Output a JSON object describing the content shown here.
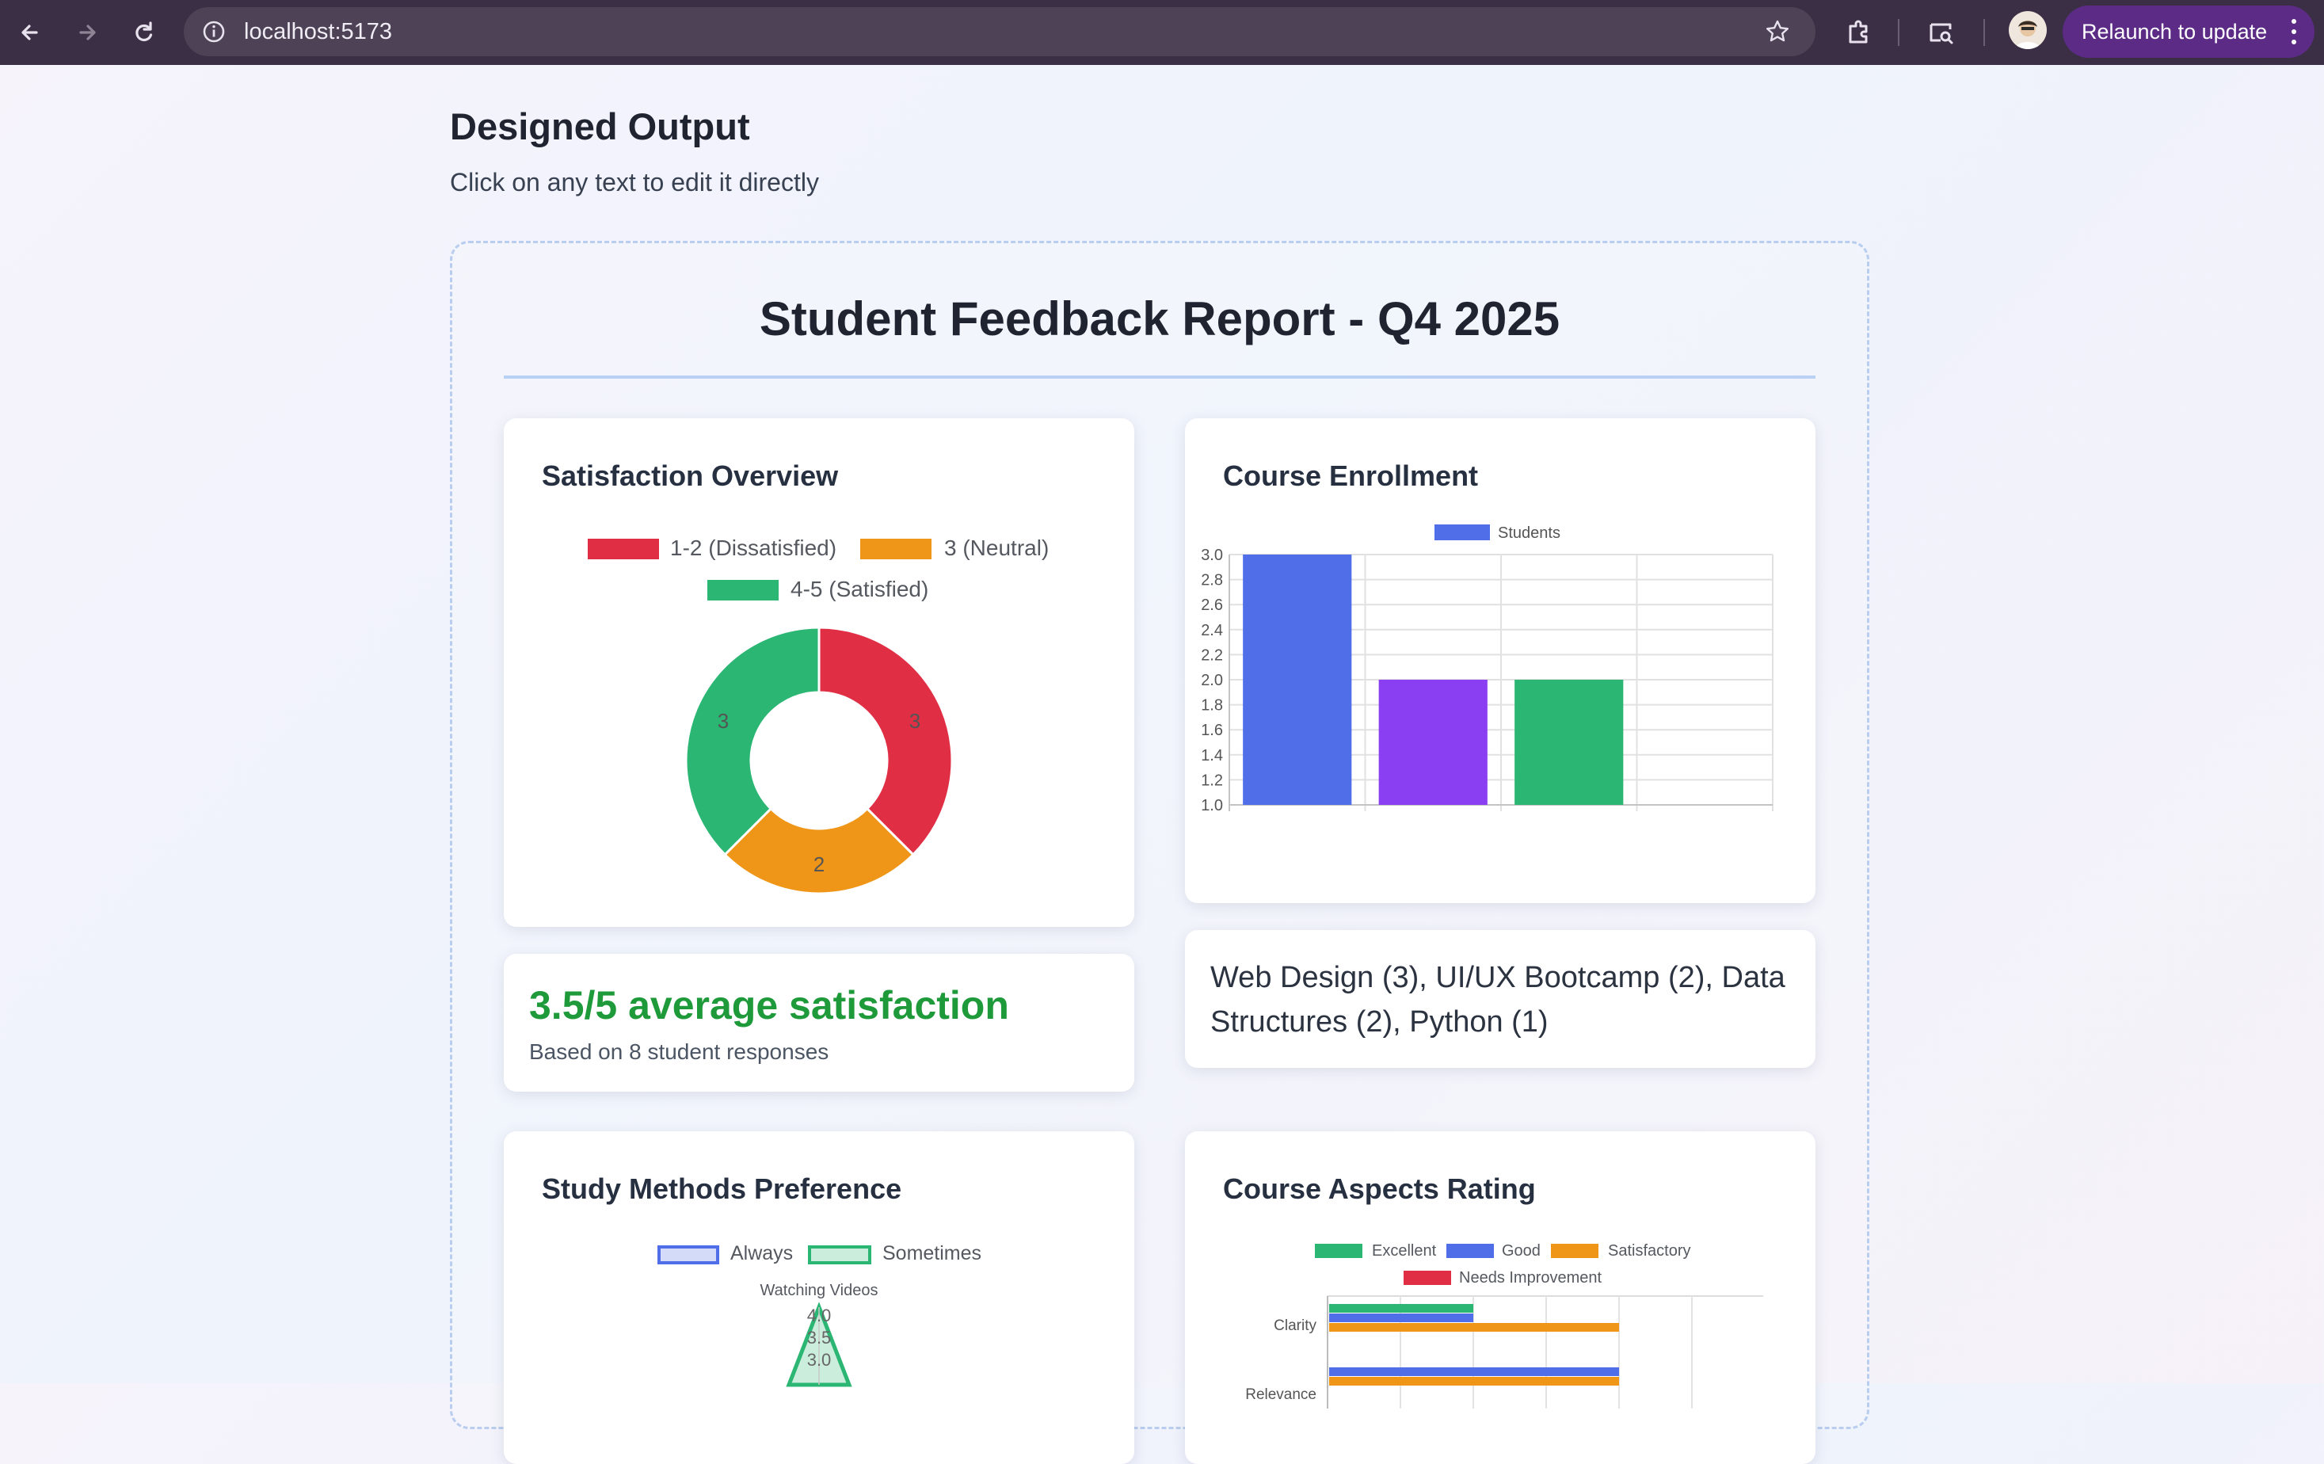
{
  "browser": {
    "url": "localhost:5173",
    "relaunch_label": "Relaunch to update"
  },
  "page": {
    "heading": "Designed Output",
    "subheading": "Click on any text to edit it directly"
  },
  "report": {
    "title": "Student Feedback Report - Q4 2025",
    "satisfaction": {
      "title": "Satisfaction Overview",
      "legend": [
        {
          "label": "1-2 (Dissatisfied)",
          "color": "#e02f44"
        },
        {
          "label": "3 (Neutral)",
          "color": "#ef9517"
        },
        {
          "label": "4-5 (Satisfied)",
          "color": "#2bb673"
        }
      ]
    },
    "average": {
      "headline": "3.5/5 average satisfaction",
      "detail": "Based on 8 student responses"
    },
    "enrollment": {
      "title": "Course Enrollment",
      "legend_label": "Students",
      "summary": "Web Design (3), UI/UX Bootcamp (2), Data Structures (2), Python (1)"
    },
    "study_methods": {
      "title": "Study Methods Preference",
      "legend": [
        {
          "label": "Always",
          "color": "#4f6ee8"
        },
        {
          "label": "Sometimes",
          "color": "#2bb673"
        }
      ],
      "axis_top_label": "Watching Videos",
      "tick_labels": [
        "4.0",
        "3.5",
        "3.0"
      ]
    },
    "aspects": {
      "title": "Course Aspects Rating",
      "legend": [
        {
          "label": "Excellent",
          "color": "#2bb673"
        },
        {
          "label": "Good",
          "color": "#4f6ee8"
        },
        {
          "label": "Satisfactory",
          "color": "#ef9517"
        },
        {
          "label": "Needs Improvement",
          "color": "#e02f44"
        }
      ],
      "categories": [
        "Clarity",
        "Relevance"
      ]
    }
  },
  "chart_data": [
    {
      "type": "pie",
      "title": "Satisfaction Overview",
      "labels": [
        "1-2 (Dissatisfied)",
        "3 (Neutral)",
        "4-5 (Satisfied)"
      ],
      "values": [
        3,
        2,
        3
      ],
      "colors": [
        "#e02f44",
        "#ef9517",
        "#2bb673"
      ],
      "legend": "top"
    },
    {
      "type": "bar",
      "title": "Course Enrollment",
      "categories": [
        "Web Design",
        "UI/UX Bootcamp",
        "Data Structures",
        "Python"
      ],
      "series": [
        {
          "name": "Students",
          "values": [
            3,
            2,
            2,
            1
          ]
        }
      ],
      "colors": [
        "#4f6ee8",
        "#8a3ff2",
        "#2bb673",
        "#ef9517"
      ],
      "ylim": [
        1.0,
        3.0
      ],
      "yticks": [
        "1.0",
        "1.2",
        "1.4",
        "1.6",
        "1.8",
        "2.0",
        "2.2",
        "2.4",
        "2.6",
        "2.8",
        "3.0"
      ],
      "grid": true,
      "legend": "top"
    }
  ]
}
